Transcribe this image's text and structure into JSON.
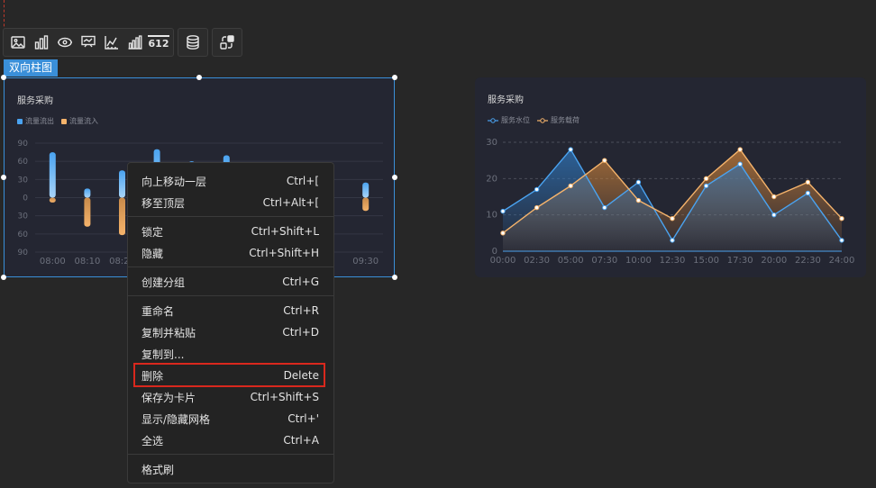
{
  "toolbar": {
    "group1": [
      "image-icon",
      "bar-chart-icon",
      "eye-target-icon",
      "presentation-icon",
      "axis-chart-icon",
      "column-chart-icon",
      "number-icon"
    ],
    "number_label": "612",
    "group2": [
      "database-icon"
    ],
    "group3": [
      "link-transfer-icon"
    ]
  },
  "component_label": "双向柱图",
  "widget1": {
    "title": "服务采购",
    "legend": [
      {
        "label": "流量流出",
        "color": "#4aa3f0"
      },
      {
        "label": "流量流入",
        "color": "#f5b36b"
      }
    ]
  },
  "widget2": {
    "title": "服务采购",
    "legend": [
      {
        "label": "服务水位",
        "color": "#4aa3f0"
      },
      {
        "label": "服务载荷",
        "color": "#f5b36b"
      }
    ]
  },
  "chart_data": [
    {
      "type": "bar",
      "title": "服务采购",
      "categories": [
        "08:00",
        "08:10",
        "08:20",
        "",
        "",
        "",
        "",
        "",
        "",
        "09:30"
      ],
      "y_ticks": [
        "90",
        "60",
        "30",
        "0",
        "30",
        "60",
        "90"
      ],
      "ylim": [
        -90,
        90
      ],
      "series": [
        {
          "name": "流量流出",
          "values": [
            75,
            15,
            45,
            80,
            60,
            70,
            40,
            55,
            55,
            25
          ]
        },
        {
          "name": "流量流入",
          "values": [
            -8,
            -48,
            -62,
            -20,
            -30,
            -22,
            -25,
            -18,
            -20,
            -22
          ]
        }
      ],
      "legend_position": "top-left",
      "grid": true
    },
    {
      "type": "area",
      "title": "服务采购",
      "x": [
        "00:00",
        "02:30",
        "05:00",
        "07:30",
        "10:00",
        "12:30",
        "15:00",
        "17:30",
        "20:00",
        "22:30",
        "24:00"
      ],
      "ylim": [
        0,
        30
      ],
      "y_ticks": [
        "0",
        "10",
        "20",
        "30"
      ],
      "series": [
        {
          "name": "服务水位",
          "values": [
            11,
            17,
            28,
            12,
            19,
            3,
            18,
            24,
            10,
            16,
            3
          ]
        },
        {
          "name": "服务载荷",
          "values": [
            5,
            12,
            18,
            25,
            14,
            9,
            20,
            28,
            15,
            19,
            9
          ]
        }
      ],
      "legend_position": "top-left",
      "grid": true
    }
  ],
  "menu": [
    {
      "label": "向上移动一层",
      "shortcut": "Ctrl+["
    },
    {
      "label": "移至顶层",
      "shortcut": "Ctrl+Alt+["
    },
    {
      "sep": true
    },
    {
      "label": "锁定",
      "shortcut": "Ctrl+Shift+L"
    },
    {
      "label": "隐藏",
      "shortcut": "Ctrl+Shift+H"
    },
    {
      "sep": true
    },
    {
      "label": "创建分组",
      "shortcut": "Ctrl+G"
    },
    {
      "sep": true
    },
    {
      "label": "重命名",
      "shortcut": "Ctrl+R"
    },
    {
      "label": "复制并粘贴",
      "shortcut": "Ctrl+D"
    },
    {
      "label": "复制到...",
      "shortcut": ""
    },
    {
      "label": "删除",
      "shortcut": "Delete"
    },
    {
      "label": "保存为卡片",
      "shortcut": "Ctrl+Shift+S"
    },
    {
      "label": "显示/隐藏网格",
      "shortcut": "Ctrl+'"
    },
    {
      "label": "全选",
      "shortcut": "Ctrl+A"
    },
    {
      "sep": true
    },
    {
      "label": "格式刷",
      "shortcut": ""
    }
  ],
  "colors": {
    "accent": "#3a8fd9",
    "highlight": "#d9281d",
    "series_blue": "#4aa3f0",
    "series_orange": "#f5b36b"
  }
}
